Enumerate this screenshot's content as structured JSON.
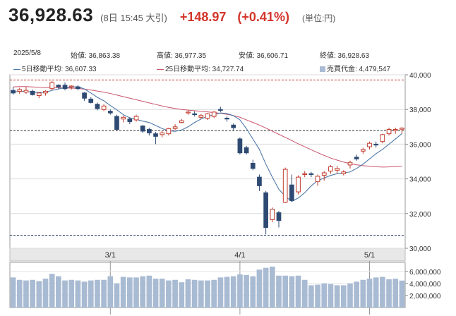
{
  "header": {
    "price": "36,928.63",
    "timestamp": "(8日 15:45 大引)",
    "change": "+148.97",
    "change_pct": "(+0.41%)",
    "unit": "(単位:円)"
  },
  "info": {
    "date": "2025/5/8",
    "open": "始値: 36,863.38",
    "high": "高値: 36,977.35",
    "low": "安値: 36,606.71",
    "close": "終値: 36,928.63",
    "ma5": "5日移動平均: 36,607.33",
    "ma25": "25日移動平均: 34,727.74",
    "volume": "売買代金: 4,479,547"
  },
  "colors": {
    "up": "#c0392b",
    "down": "#2e4a73",
    "ma5": "#4f79a8",
    "ma25": "#c9546c",
    "volume": "#a9bbd3"
  },
  "chart_data": {
    "type": "candlestick",
    "price_axis": {
      "ticks": [
        30000,
        32000,
        34000,
        36000,
        38000,
        40000
      ],
      "tick_labels": [
        "30,000",
        "32,000",
        "34,000",
        "36,000",
        "38,000",
        "40,000"
      ],
      "range": [
        30000,
        40000
      ]
    },
    "volume_axis": {
      "ticks": [
        2000000,
        4000000,
        6000000
      ],
      "tick_labels": [
        "2,000,000",
        "4,000,000",
        "6,000,000"
      ],
      "range": [
        0,
        7500000
      ]
    },
    "x_labels": [
      {
        "label": "3/1",
        "index": 15
      },
      {
        "label": "4/1",
        "index": 35
      },
      {
        "label": "5/1",
        "index": 55
      }
    ],
    "reference_lines": [
      39700,
      36780,
      30750
    ],
    "candles": [
      [
        39100,
        39300,
        38850,
        38950
      ],
      [
        39050,
        39250,
        38900,
        39150
      ],
      [
        39000,
        39300,
        38900,
        39100
      ],
      [
        39050,
        39150,
        38800,
        38850
      ],
      [
        38800,
        39000,
        38650,
        38950
      ],
      [
        38950,
        39100,
        38800,
        39050
      ],
      [
        39200,
        39650,
        39100,
        39550
      ],
      [
        39400,
        39450,
        39200,
        39300
      ],
      [
        39400,
        39550,
        39100,
        39200
      ],
      [
        39300,
        39400,
        39150,
        39350
      ],
      [
        39300,
        39400,
        39100,
        39200
      ],
      [
        38950,
        39000,
        38500,
        38650
      ],
      [
        38600,
        38700,
        38350,
        38400
      ],
      [
        38300,
        38400,
        37950,
        38050
      ],
      [
        38000,
        38300,
        37900,
        38200
      ],
      [
        37900,
        38000,
        37700,
        37800
      ],
      [
        37600,
        37700,
        36800,
        36850
      ],
      [
        37450,
        37650,
        37250,
        37550
      ],
      [
        37450,
        37550,
        37150,
        37300
      ],
      [
        37400,
        37700,
        37300,
        37600
      ],
      [
        37050,
        37100,
        36650,
        36750
      ],
      [
        36850,
        36950,
        36500,
        36650
      ],
      [
        36600,
        36700,
        36000,
        36450
      ],
      [
        36550,
        36750,
        36400,
        36650
      ],
      [
        36600,
        36950,
        36500,
        36900
      ],
      [
        36900,
        37150,
        36800,
        37000
      ],
      [
        37250,
        37450,
        37200,
        37350
      ],
      [
        37800,
        37950,
        37700,
        37850
      ],
      [
        37750,
        37900,
        37600,
        37700
      ],
      [
        37550,
        37750,
        37450,
        37650
      ],
      [
        37500,
        37800,
        37400,
        37750
      ],
      [
        37600,
        37900,
        37500,
        37850
      ],
      [
        38000,
        38150,
        37850,
        37950
      ],
      [
        37500,
        37600,
        37300,
        37450
      ],
      [
        37100,
        37200,
        36800,
        36950
      ],
      [
        36300,
        36400,
        35400,
        35500
      ],
      [
        35800,
        35900,
        35400,
        35500
      ],
      [
        34900,
        35100,
        34500,
        34600
      ],
      [
        34100,
        34250,
        33300,
        33600
      ],
      [
        33200,
        33300,
        30800,
        31200
      ],
      [
        31650,
        32350,
        31500,
        32250
      ],
      [
        32050,
        32150,
        31200,
        31600
      ],
      [
        32650,
        34650,
        32600,
        34550
      ],
      [
        33650,
        34250,
        32700,
        32750
      ],
      [
        33250,
        34200,
        33100,
        34100
      ],
      [
        34250,
        34450,
        34100,
        34300
      ],
      [
        34300,
        34400,
        34100,
        34250
      ],
      [
        33850,
        34250,
        33600,
        34150
      ],
      [
        34200,
        34450,
        33900,
        34350
      ],
      [
        34450,
        34800,
        34300,
        34700
      ],
      [
        34500,
        34750,
        34300,
        34600
      ],
      [
        34300,
        34500,
        34200,
        34400
      ],
      [
        34800,
        35050,
        34600,
        34950
      ],
      [
        35250,
        35400,
        35050,
        35150
      ],
      [
        35600,
        35800,
        35450,
        35700
      ],
      [
        35850,
        36150,
        35700,
        36050
      ],
      [
        36000,
        36150,
        35800,
        35950
      ],
      [
        36150,
        36600,
        36050,
        36550
      ],
      [
        36600,
        36950,
        36500,
        36850
      ],
      [
        36780,
        36950,
        36600,
        36850
      ],
      [
        36863.38,
        36977.35,
        36606.71,
        36928.63
      ]
    ],
    "volumes": [
      5.0,
      4.6,
      4.5,
      4.6,
      4.4,
      4.8,
      5.6,
      5.2,
      4.5,
      4.6,
      4.5,
      4.3,
      4.5,
      4.6,
      4.6,
      5.2,
      4.0,
      5.1,
      5.0,
      5.0,
      5.2,
      5.3,
      4.8,
      4.8,
      4.5,
      4.6,
      4.2,
      4.7,
      4.6,
      4.5,
      4.5,
      4.6,
      5.0,
      5.1,
      5.2,
      5.5,
      5.4,
      5.2,
      6.3,
      6.6,
      6.8,
      5.3,
      5.3,
      5.2,
      5.3,
      4.6,
      3.7,
      3.8,
      4.0,
      3.9,
      3.7,
      3.7,
      4.0,
      4.3,
      4.6,
      4.8,
      5.0,
      5.1,
      4.7,
      4.8,
      4.48
    ],
    "ma5": [
      39000,
      39050,
      39030,
      39000,
      38980,
      38990,
      39100,
      39180,
      39260,
      39280,
      39320,
      39180,
      38950,
      38700,
      38500,
      38230,
      37980,
      37700,
      37520,
      37420,
      37330,
      37250,
      37080,
      36900,
      36770,
      36740,
      36820,
      37000,
      37250,
      37450,
      37600,
      37700,
      37800,
      37760,
      37640,
      37400,
      36900,
      36300,
      35700,
      34850,
      34100,
      33400,
      33000,
      32700,
      32900,
      33200,
      33600,
      33900,
      34050,
      34200,
      34300,
      34350,
      34400,
      34600,
      34850,
      35150,
      35450,
      35700,
      36000,
      36300,
      36607.33
    ],
    "ma25": [
      39300,
      39320,
      39320,
      39300,
      39280,
      39270,
      39260,
      39250,
      39240,
      39230,
      39210,
      39170,
      39120,
      39060,
      39000,
      38920,
      38830,
      38740,
      38650,
      38560,
      38470,
      38380,
      38290,
      38200,
      38120,
      38060,
      38000,
      37960,
      37930,
      37890,
      37860,
      37820,
      37780,
      37720,
      37650,
      37550,
      37400,
      37250,
      37100,
      36930,
      36750,
      36570,
      36390,
      36210,
      36020,
      35850,
      35680,
      35510,
      35350,
      35200,
      35080,
      34970,
      34880,
      34810,
      34760,
      34730,
      34700,
      34680,
      34690,
      34710,
      34727.74
    ]
  }
}
